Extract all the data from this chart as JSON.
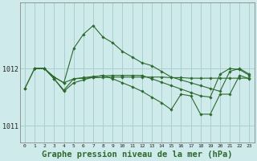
{
  "bg_color": "#ceeaea",
  "grid_color": "#aacfcf",
  "line_color": "#2d6a2d",
  "title": "Graphe pression niveau de la mer (hPa)",
  "title_fontsize": 7.5,
  "ylim": [
    1010.7,
    1013.15
  ],
  "xlim": [
    -0.5,
    23.5
  ],
  "yticks": [
    1011,
    1012
  ],
  "xticks": [
    0,
    1,
    2,
    3,
    4,
    5,
    6,
    7,
    8,
    9,
    10,
    11,
    12,
    13,
    14,
    15,
    16,
    17,
    18,
    19,
    20,
    21,
    22,
    23
  ],
  "series": [
    {
      "x": [
        0,
        1,
        2,
        3,
        4,
        5,
        6,
        7,
        8,
        9,
        10,
        11,
        12,
        13,
        14,
        15,
        16,
        17,
        18,
        19,
        20,
        21,
        22,
        23
      ],
      "y": [
        1011.65,
        1012.0,
        1012.0,
        1011.85,
        1011.75,
        1012.35,
        1012.6,
        1012.75,
        1012.55,
        1012.45,
        1012.3,
        1012.2,
        1012.1,
        1012.05,
        1011.95,
        1011.85,
        1011.8,
        1011.75,
        1011.7,
        1011.65,
        1011.6,
        1011.95,
        1012.0,
        1011.9
      ]
    },
    {
      "x": [
        0,
        1,
        2,
        3,
        4,
        5,
        6,
        7,
        8,
        9,
        10,
        11,
        12,
        13,
        14,
        15,
        16,
        17,
        18,
        19,
        20,
        21,
        22,
        23
      ],
      "y": [
        1011.65,
        1012.0,
        1012.0,
        1011.85,
        1011.75,
        1011.82,
        1011.83,
        1011.84,
        1011.84,
        1011.85,
        1011.85,
        1011.85,
        1011.85,
        1011.85,
        1011.85,
        1011.84,
        1011.84,
        1011.83,
        1011.83,
        1011.83,
        1011.83,
        1011.83,
        1011.83,
        1011.83
      ]
    },
    {
      "x": [
        1,
        2,
        3,
        4,
        5,
        6,
        7,
        8,
        9,
        10,
        11,
        12,
        13,
        14,
        15,
        16,
        17,
        18,
        19,
        20,
        21,
        22,
        23
      ],
      "y": [
        1012.0,
        1012.0,
        1011.82,
        1011.62,
        1011.82,
        1011.84,
        1011.86,
        1011.87,
        1011.88,
        1011.88,
        1011.88,
        1011.88,
        1011.82,
        1011.76,
        1011.7,
        1011.64,
        1011.58,
        1011.52,
        1011.5,
        1011.9,
        1012.0,
        1011.98,
        1011.88
      ]
    },
    {
      "x": [
        1,
        2,
        3,
        4,
        5,
        6,
        7,
        8,
        9,
        10,
        11,
        12,
        13,
        14,
        15,
        16,
        17,
        18,
        19,
        20,
        21,
        22,
        23
      ],
      "y": [
        1012.0,
        1012.0,
        1011.82,
        1011.6,
        1011.75,
        1011.8,
        1011.85,
        1011.88,
        1011.82,
        1011.75,
        1011.68,
        1011.6,
        1011.5,
        1011.4,
        1011.28,
        1011.55,
        1011.52,
        1011.2,
        1011.2,
        1011.55,
        1011.55,
        1011.88,
        1011.82
      ]
    }
  ]
}
